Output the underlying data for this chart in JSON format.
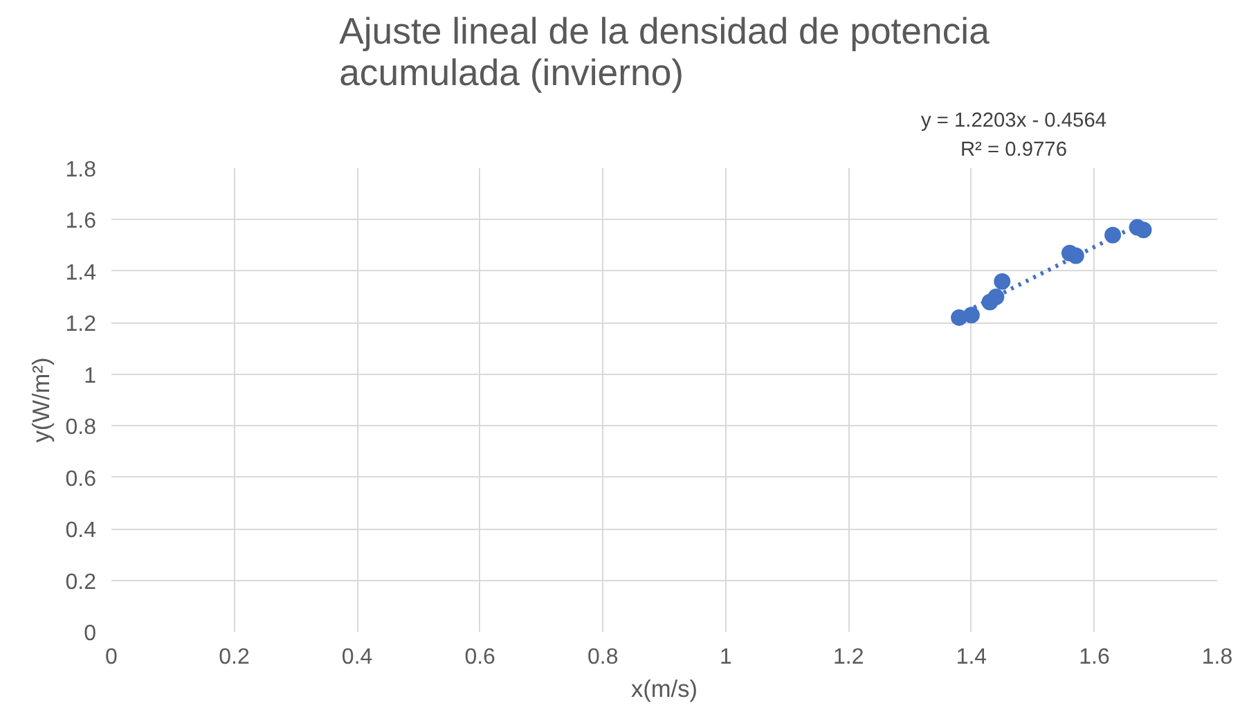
{
  "chart_data": {
    "type": "scatter",
    "title": "Ajuste lineal de la densidad de potencia\nacumulada (invierno)",
    "xlabel": "x(m/s)",
    "ylabel": "y(W/m²)",
    "xlim": [
      0,
      1.8
    ],
    "ylim": [
      0,
      1.8
    ],
    "xticks": [
      0,
      0.2,
      0.4,
      0.6,
      0.8,
      1,
      1.2,
      1.4,
      1.6,
      1.8
    ],
    "yticks": [
      0,
      0.2,
      0.4,
      0.6,
      0.8,
      1,
      1.2,
      1.4,
      1.6,
      1.8
    ],
    "grid": true,
    "series": [
      {
        "marker": "circle",
        "color": "#4472c4",
        "x": [
          1.38,
          1.4,
          1.43,
          1.44,
          1.45,
          1.56,
          1.57,
          1.63,
          1.67,
          1.68
        ],
        "values": [
          1.22,
          1.23,
          1.28,
          1.3,
          1.36,
          1.47,
          1.46,
          1.54,
          1.57,
          1.56
        ]
      },
      {
        "type": "line",
        "color": "#4472c4",
        "line_style": "dotted",
        "x": [
          1.38,
          1.68
        ],
        "values": [
          1.23,
          1.59
        ]
      }
    ],
    "annotations": [
      "y = 1.2203x - 0.4564\nR² = 0.9776"
    ]
  }
}
